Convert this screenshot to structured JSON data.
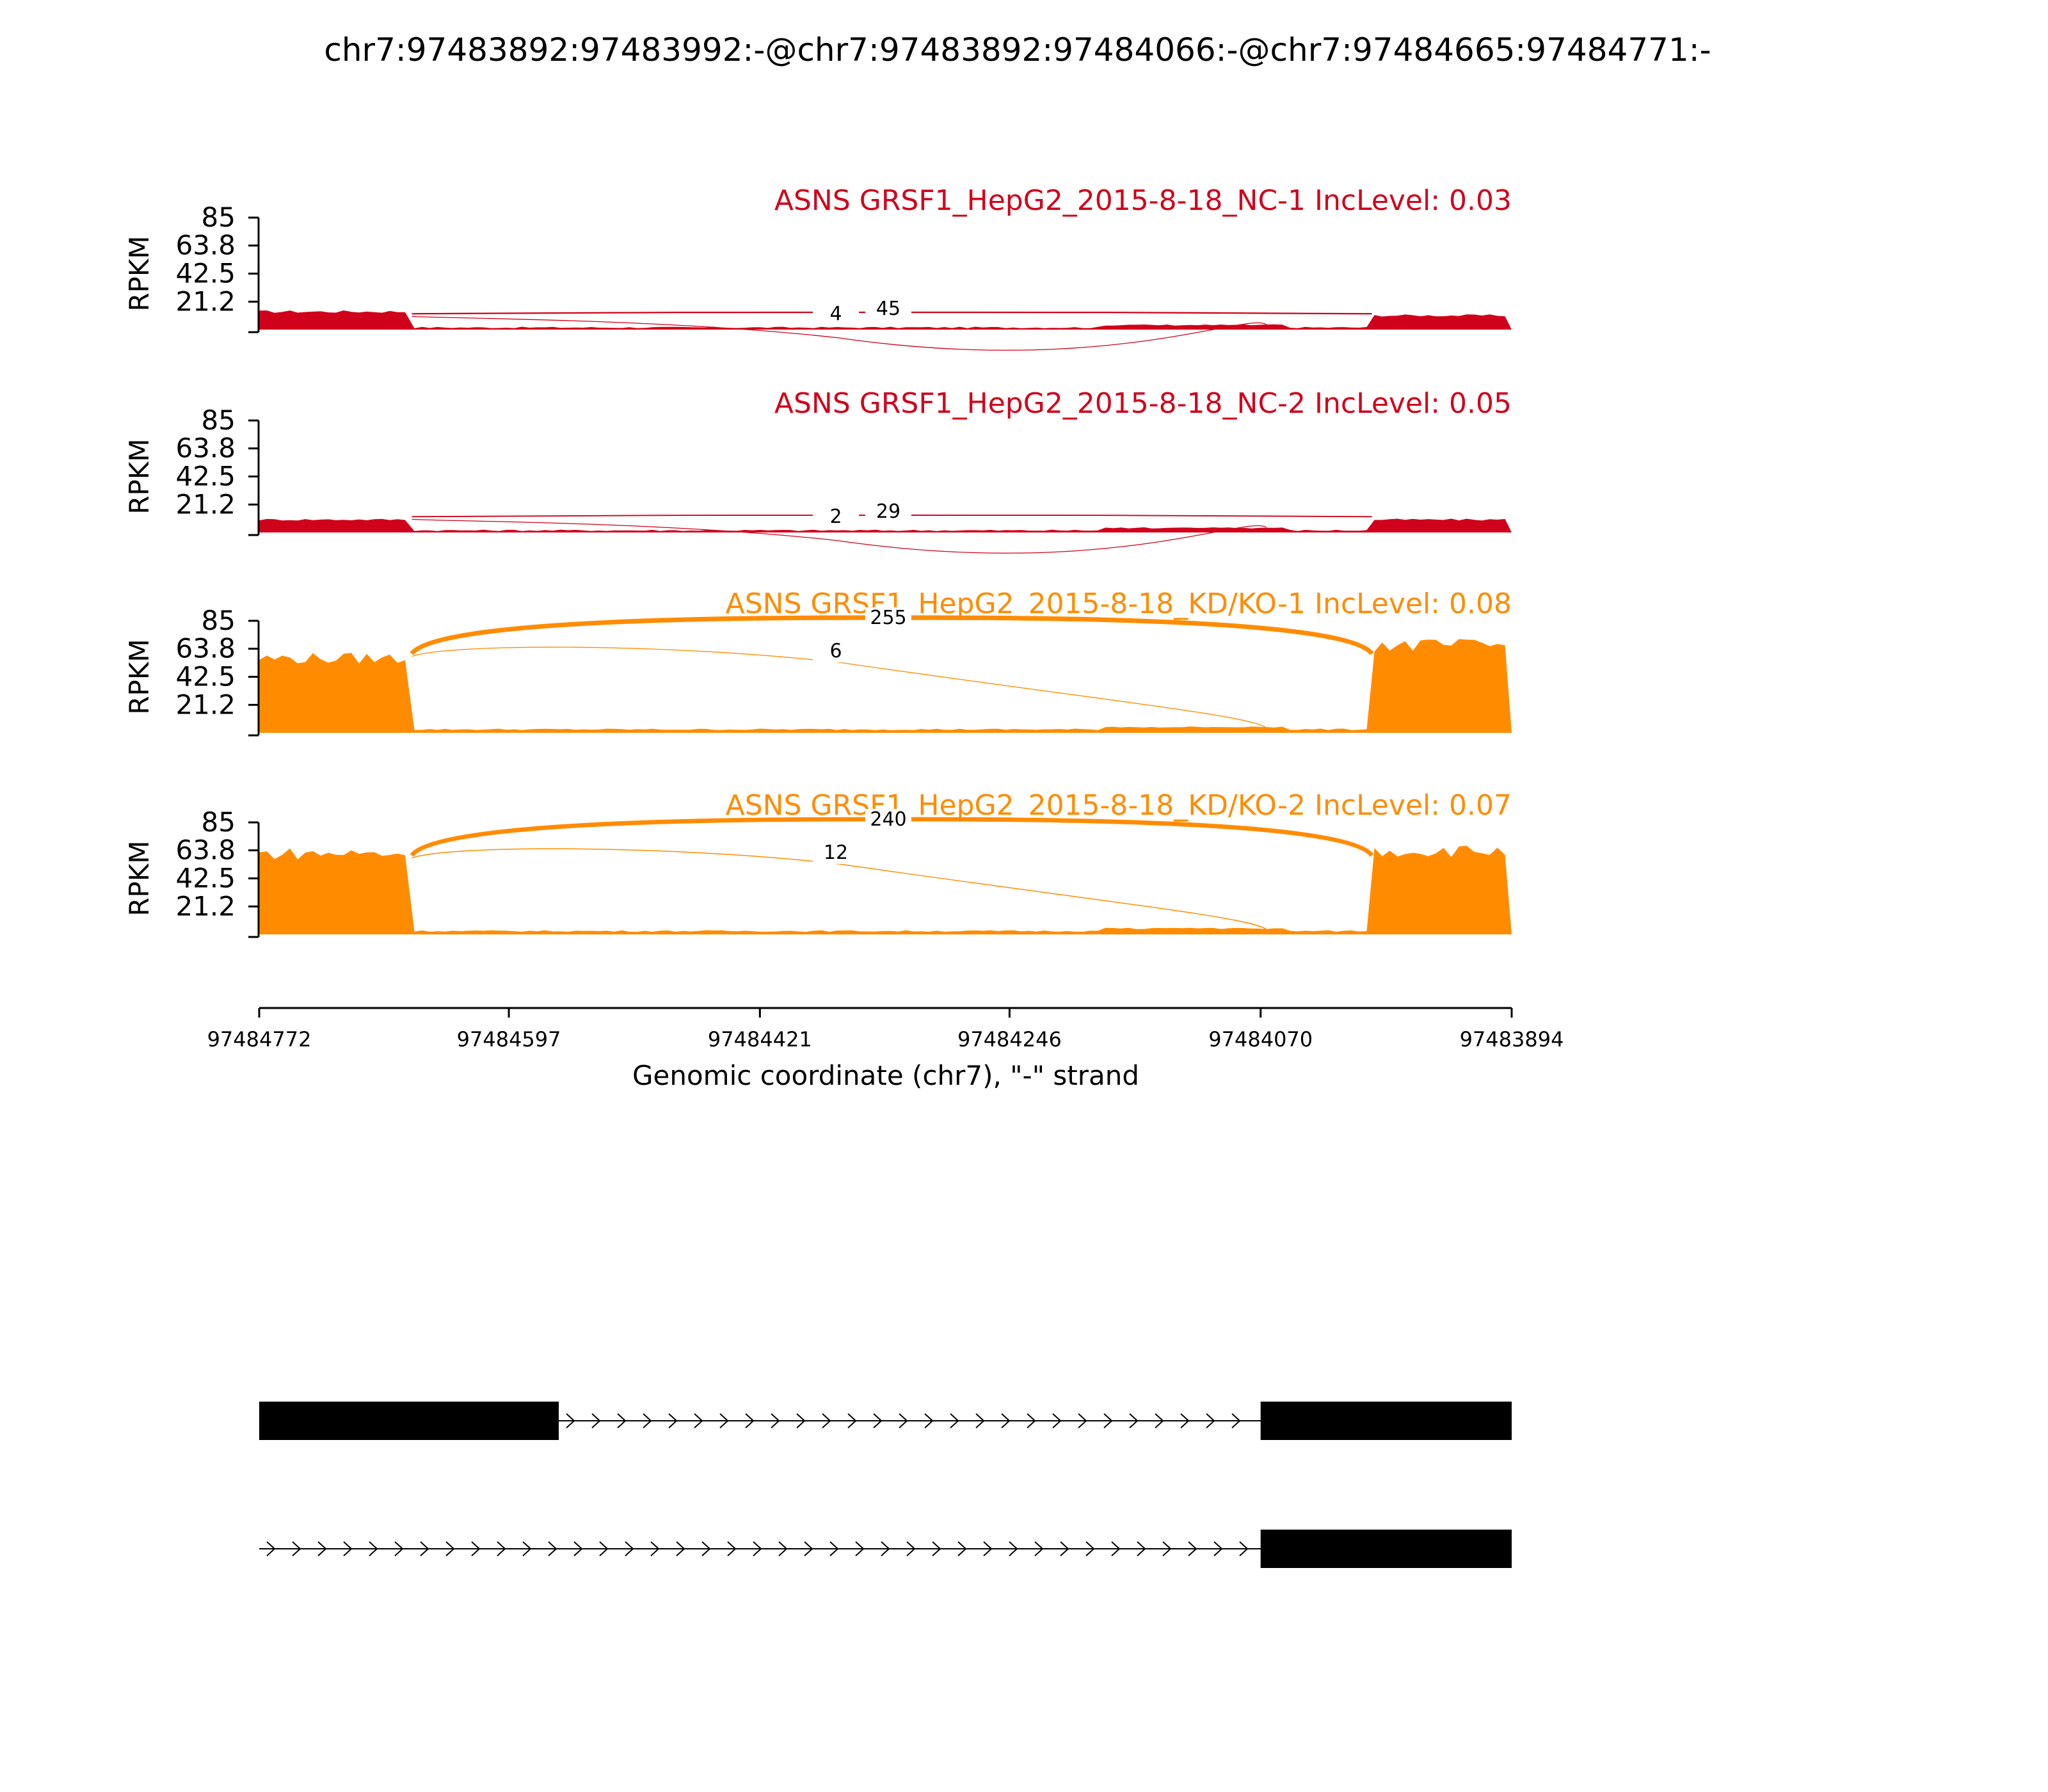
{
  "chart_data": {
    "type": "sashimi",
    "title": "chr7:97483892:97483992:-@chr7:97483892:97484066:-@chr7:97484665:97484771:-",
    "xlabel": "Genomic coordinate (chr7), \"-\" strand",
    "ylabel": "RPKM",
    "xlim": [
      97484772,
      97483894
    ],
    "x_ticks": [
      "97484772",
      "97484597",
      "97484421",
      "97484246",
      "97484070",
      "97483894"
    ],
    "ylim": [
      0,
      85
    ],
    "y_ticks": [
      "85",
      "63.8",
      "42.5",
      "21.2"
    ],
    "colors": {
      "NC": "#d0021b",
      "KD": "#ff8c00",
      "exon": "#000000"
    },
    "tracks": [
      {
        "label": "ASNS GRSF1_HepG2_2015-8-18_NC-1 IncLevel: 0.03",
        "group": "NC",
        "coverage": {
          "left_exon": 14,
          "middle": 1,
          "right_exon": 11
        },
        "junctions": [
          {
            "label": "45",
            "from": 97484665,
            "to": 97483992,
            "reads": 45
          },
          {
            "label": "4",
            "from": 97484665,
            "to": 97484066,
            "reads": 4
          }
        ]
      },
      {
        "label": "ASNS GRSF1_HepG2_2015-8-18_NC-2 IncLevel: 0.05",
        "group": "NC",
        "coverage": {
          "left_exon": 10,
          "middle": 1,
          "right_exon": 10
        },
        "junctions": [
          {
            "label": "29",
            "from": 97484665,
            "to": 97483992,
            "reads": 29
          },
          {
            "label": "2",
            "from": 97484665,
            "to": 97484066,
            "reads": 2
          }
        ]
      },
      {
        "label": "ASNS GRSF1_HepG2_2015-8-18_KD/KO-1 IncLevel: 0.08",
        "group": "KD",
        "coverage": {
          "left_exon": 58,
          "middle": 2,
          "right_exon": 68
        },
        "junctions": [
          {
            "label": "255",
            "from": 97484665,
            "to": 97483992,
            "reads": 255
          },
          {
            "label": "6",
            "from": 97484665,
            "to": 97484066,
            "reads": 6
          }
        ]
      },
      {
        "label": "ASNS GRSF1_HepG2_2015-8-18_KD/KO-2 IncLevel: 0.07",
        "group": "KD",
        "coverage": {
          "left_exon": 63,
          "middle": 2,
          "right_exon": 65
        },
        "junctions": [
          {
            "label": "240",
            "from": 97484665,
            "to": 97483992,
            "reads": 240
          },
          {
            "label": "12",
            "from": 97484665,
            "to": 97484066,
            "reads": 12
          }
        ]
      }
    ],
    "transcripts": [
      {
        "exons": [
          [
            97484772,
            97484562
          ],
          [
            97484070,
            97483894
          ]
        ]
      },
      {
        "exons": [
          [
            97484070,
            97483894
          ]
        ]
      }
    ]
  }
}
